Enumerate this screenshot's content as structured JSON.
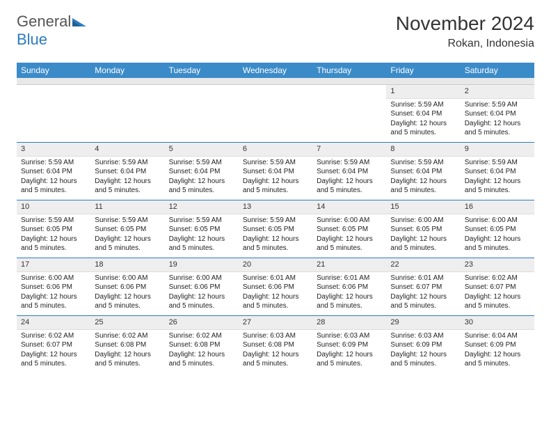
{
  "branding": {
    "logo_g": "General",
    "logo_b": "Blue",
    "flag_color": "#2b7bbf"
  },
  "header": {
    "month_title": "November 2024",
    "location": "Rokan, Indonesia"
  },
  "colors": {
    "header_bg": "#3b8bc9",
    "header_text": "#ffffff",
    "daynum_bg": "#eeeeee",
    "week_border": "#2b7bbf",
    "text": "#222222"
  },
  "day_names": [
    "Sunday",
    "Monday",
    "Tuesday",
    "Wednesday",
    "Thursday",
    "Friday",
    "Saturday"
  ],
  "weeks": [
    [
      {
        "n": "",
        "sr": "",
        "ss": "",
        "dl": ""
      },
      {
        "n": "",
        "sr": "",
        "ss": "",
        "dl": ""
      },
      {
        "n": "",
        "sr": "",
        "ss": "",
        "dl": ""
      },
      {
        "n": "",
        "sr": "",
        "ss": "",
        "dl": ""
      },
      {
        "n": "",
        "sr": "",
        "ss": "",
        "dl": ""
      },
      {
        "n": "1",
        "sr": "Sunrise: 5:59 AM",
        "ss": "Sunset: 6:04 PM",
        "dl": "Daylight: 12 hours and 5 minutes."
      },
      {
        "n": "2",
        "sr": "Sunrise: 5:59 AM",
        "ss": "Sunset: 6:04 PM",
        "dl": "Daylight: 12 hours and 5 minutes."
      }
    ],
    [
      {
        "n": "3",
        "sr": "Sunrise: 5:59 AM",
        "ss": "Sunset: 6:04 PM",
        "dl": "Daylight: 12 hours and 5 minutes."
      },
      {
        "n": "4",
        "sr": "Sunrise: 5:59 AM",
        "ss": "Sunset: 6:04 PM",
        "dl": "Daylight: 12 hours and 5 minutes."
      },
      {
        "n": "5",
        "sr": "Sunrise: 5:59 AM",
        "ss": "Sunset: 6:04 PM",
        "dl": "Daylight: 12 hours and 5 minutes."
      },
      {
        "n": "6",
        "sr": "Sunrise: 5:59 AM",
        "ss": "Sunset: 6:04 PM",
        "dl": "Daylight: 12 hours and 5 minutes."
      },
      {
        "n": "7",
        "sr": "Sunrise: 5:59 AM",
        "ss": "Sunset: 6:04 PM",
        "dl": "Daylight: 12 hours and 5 minutes."
      },
      {
        "n": "8",
        "sr": "Sunrise: 5:59 AM",
        "ss": "Sunset: 6:04 PM",
        "dl": "Daylight: 12 hours and 5 minutes."
      },
      {
        "n": "9",
        "sr": "Sunrise: 5:59 AM",
        "ss": "Sunset: 6:04 PM",
        "dl": "Daylight: 12 hours and 5 minutes."
      }
    ],
    [
      {
        "n": "10",
        "sr": "Sunrise: 5:59 AM",
        "ss": "Sunset: 6:05 PM",
        "dl": "Daylight: 12 hours and 5 minutes."
      },
      {
        "n": "11",
        "sr": "Sunrise: 5:59 AM",
        "ss": "Sunset: 6:05 PM",
        "dl": "Daylight: 12 hours and 5 minutes."
      },
      {
        "n": "12",
        "sr": "Sunrise: 5:59 AM",
        "ss": "Sunset: 6:05 PM",
        "dl": "Daylight: 12 hours and 5 minutes."
      },
      {
        "n": "13",
        "sr": "Sunrise: 5:59 AM",
        "ss": "Sunset: 6:05 PM",
        "dl": "Daylight: 12 hours and 5 minutes."
      },
      {
        "n": "14",
        "sr": "Sunrise: 6:00 AM",
        "ss": "Sunset: 6:05 PM",
        "dl": "Daylight: 12 hours and 5 minutes."
      },
      {
        "n": "15",
        "sr": "Sunrise: 6:00 AM",
        "ss": "Sunset: 6:05 PM",
        "dl": "Daylight: 12 hours and 5 minutes."
      },
      {
        "n": "16",
        "sr": "Sunrise: 6:00 AM",
        "ss": "Sunset: 6:05 PM",
        "dl": "Daylight: 12 hours and 5 minutes."
      }
    ],
    [
      {
        "n": "17",
        "sr": "Sunrise: 6:00 AM",
        "ss": "Sunset: 6:06 PM",
        "dl": "Daylight: 12 hours and 5 minutes."
      },
      {
        "n": "18",
        "sr": "Sunrise: 6:00 AM",
        "ss": "Sunset: 6:06 PM",
        "dl": "Daylight: 12 hours and 5 minutes."
      },
      {
        "n": "19",
        "sr": "Sunrise: 6:00 AM",
        "ss": "Sunset: 6:06 PM",
        "dl": "Daylight: 12 hours and 5 minutes."
      },
      {
        "n": "20",
        "sr": "Sunrise: 6:01 AM",
        "ss": "Sunset: 6:06 PM",
        "dl": "Daylight: 12 hours and 5 minutes."
      },
      {
        "n": "21",
        "sr": "Sunrise: 6:01 AM",
        "ss": "Sunset: 6:06 PM",
        "dl": "Daylight: 12 hours and 5 minutes."
      },
      {
        "n": "22",
        "sr": "Sunrise: 6:01 AM",
        "ss": "Sunset: 6:07 PM",
        "dl": "Daylight: 12 hours and 5 minutes."
      },
      {
        "n": "23",
        "sr": "Sunrise: 6:02 AM",
        "ss": "Sunset: 6:07 PM",
        "dl": "Daylight: 12 hours and 5 minutes."
      }
    ],
    [
      {
        "n": "24",
        "sr": "Sunrise: 6:02 AM",
        "ss": "Sunset: 6:07 PM",
        "dl": "Daylight: 12 hours and 5 minutes."
      },
      {
        "n": "25",
        "sr": "Sunrise: 6:02 AM",
        "ss": "Sunset: 6:08 PM",
        "dl": "Daylight: 12 hours and 5 minutes."
      },
      {
        "n": "26",
        "sr": "Sunrise: 6:02 AM",
        "ss": "Sunset: 6:08 PM",
        "dl": "Daylight: 12 hours and 5 minutes."
      },
      {
        "n": "27",
        "sr": "Sunrise: 6:03 AM",
        "ss": "Sunset: 6:08 PM",
        "dl": "Daylight: 12 hours and 5 minutes."
      },
      {
        "n": "28",
        "sr": "Sunrise: 6:03 AM",
        "ss": "Sunset: 6:09 PM",
        "dl": "Daylight: 12 hours and 5 minutes."
      },
      {
        "n": "29",
        "sr": "Sunrise: 6:03 AM",
        "ss": "Sunset: 6:09 PM",
        "dl": "Daylight: 12 hours and 5 minutes."
      },
      {
        "n": "30",
        "sr": "Sunrise: 6:04 AM",
        "ss": "Sunset: 6:09 PM",
        "dl": "Daylight: 12 hours and 5 minutes."
      }
    ]
  ]
}
